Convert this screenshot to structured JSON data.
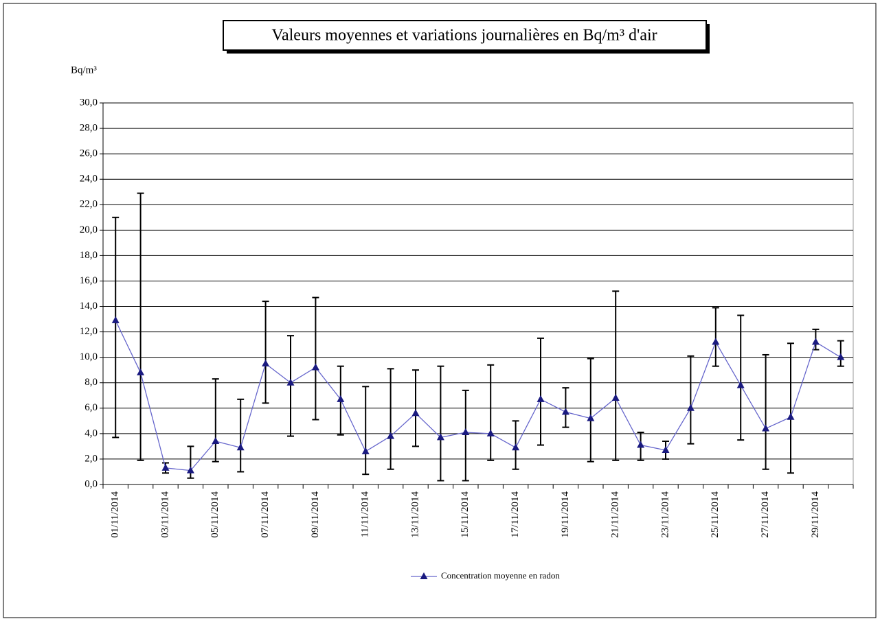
{
  "chart_data": {
    "type": "line",
    "title": "Valeurs moyennes et variations journalières en Bq/m³ d'air",
    "y_label": "Bq/m³",
    "categories": [
      "01/11/2014",
      null,
      "03/11/2014",
      null,
      "05/11/2014",
      null,
      "07/11/2014",
      null,
      "09/11/2014",
      null,
      "11/11/2014",
      null,
      "13/11/2014",
      null,
      "15/11/2014",
      null,
      "17/11/2014",
      null,
      "19/11/2014",
      null,
      "21/11/2014",
      null,
      "23/11/2014",
      null,
      "25/11/2014",
      null,
      "27/11/2014",
      null,
      "29/11/2014",
      null
    ],
    "series": [
      {
        "name": "Concentration moyenne en radon",
        "color": "#6666cc",
        "marker_color": "#1a1a80",
        "values": [
          12.9,
          8.8,
          1.3,
          1.1,
          3.4,
          2.9,
          9.5,
          8.0,
          9.2,
          6.7,
          2.6,
          3.8,
          5.6,
          3.7,
          4.1,
          4.0,
          2.9,
          6.7,
          5.7,
          5.2,
          6.8,
          3.1,
          2.7,
          6.0,
          11.2,
          7.8,
          4.4,
          5.3,
          11.2,
          10.0
        ],
        "min": [
          3.7,
          1.9,
          0.9,
          0.5,
          1.8,
          1.0,
          6.4,
          3.8,
          5.1,
          3.9,
          0.8,
          1.2,
          3.0,
          0.3,
          0.3,
          1.9,
          1.2,
          3.1,
          4.5,
          1.8,
          1.9,
          1.9,
          2.0,
          3.2,
          9.3,
          3.5,
          1.2,
          0.9,
          10.6,
          9.3
        ],
        "max": [
          21.0,
          22.9,
          1.7,
          3.0,
          8.3,
          6.7,
          14.4,
          11.7,
          14.7,
          9.3,
          7.7,
          9.1,
          9.0,
          9.3,
          7.4,
          9.4,
          5.0,
          11.5,
          7.6,
          9.9,
          15.2,
          4.1,
          3.4,
          10.1,
          13.9,
          13.3,
          10.2,
          11.1,
          12.2,
          11.3
        ]
      }
    ],
    "ylim": [
      0,
      30
    ],
    "yticks": [
      {
        "value": 0,
        "label": "0,0"
      },
      {
        "value": 2,
        "label": "2,0"
      },
      {
        "value": 4,
        "label": "4,0"
      },
      {
        "value": 6,
        "label": "6,0"
      },
      {
        "value": 8,
        "label": "8,0"
      },
      {
        "value": 10,
        "label": "10,0"
      },
      {
        "value": 12,
        "label": "12,0"
      },
      {
        "value": 14,
        "label": "14,0"
      },
      {
        "value": 16,
        "label": "16,0"
      },
      {
        "value": 18,
        "label": "18,0"
      },
      {
        "value": 20,
        "label": "20,0"
      },
      {
        "value": 22,
        "label": "22,0"
      },
      {
        "value": 24,
        "label": "24,0"
      },
      {
        "value": 26,
        "label": "26,0"
      },
      {
        "value": 28,
        "label": "28,0"
      },
      {
        "value": 30,
        "label": "30,0"
      }
    ],
    "grid": true,
    "legend": "bottom"
  }
}
